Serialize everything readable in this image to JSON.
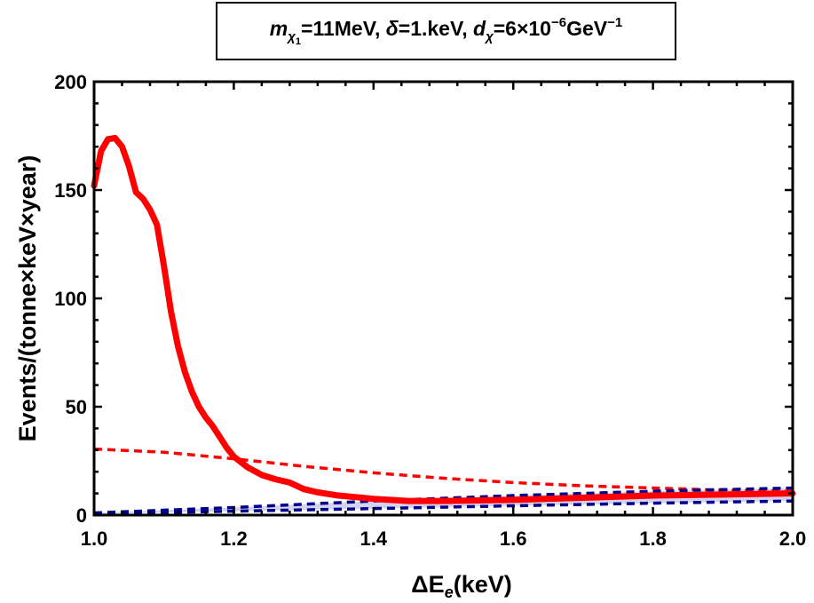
{
  "chart_data": {
    "type": "line",
    "title": {
      "m_symbol": "m",
      "chi": "χ",
      "one": "1",
      "m_value": "=11MeV,",
      "delta_symbol": "δ",
      "delta_value": "=1.keV,",
      "d_symbol": "d",
      "d_value": "=6×10",
      "d_exponent": "−6",
      "d_unit": "GeV",
      "d_unit_exponent": "−1"
    },
    "xlabel": "ΔE",
    "xlabel_sub": "e",
    "xlabel_unit": "(keV)",
    "ylabel": "Events/(tonne×keV×year)",
    "xlim": [
      1.0,
      2.0
    ],
    "ylim": [
      0,
      200
    ],
    "xticks": [
      1.0,
      1.2,
      1.4,
      1.6,
      1.8,
      2.0
    ],
    "xtick_labels": [
      "1.0",
      "1.2",
      "1.4",
      "1.6",
      "1.8",
      "2.0"
    ],
    "yticks": [
      0,
      50,
      100,
      150,
      200
    ],
    "ytick_labels": [
      "0",
      "50",
      "100",
      "150",
      "200"
    ],
    "series": [
      {
        "name": "signal",
        "style": "solid-thick",
        "color": "#ff0000",
        "x": [
          1.0,
          1.01,
          1.02,
          1.03,
          1.04,
          1.05,
          1.06,
          1.07,
          1.08,
          1.09,
          1.1,
          1.11,
          1.12,
          1.13,
          1.14,
          1.15,
          1.16,
          1.17,
          1.18,
          1.19,
          1.2,
          1.22,
          1.24,
          1.26,
          1.28,
          1.3,
          1.32,
          1.35,
          1.4,
          1.45,
          1.5,
          1.6,
          1.7,
          1.8,
          1.9,
          2.0
        ],
        "y": [
          152,
          168,
          173.5,
          174,
          170,
          161,
          149,
          146,
          141,
          134,
          115,
          94,
          78,
          66,
          57,
          50,
          45,
          41,
          36,
          31,
          27,
          22,
          18.5,
          16.5,
          15,
          12,
          10.5,
          9,
          7.5,
          6.5,
          6.5,
          7,
          8,
          9,
          9.5,
          10
        ]
      },
      {
        "name": "background-red-dashed",
        "style": "dashed",
        "color": "#ff0000",
        "x": [
          1.0,
          1.1,
          1.2,
          1.3,
          1.4,
          1.5,
          1.6,
          1.7,
          1.8,
          1.9,
          2.0
        ],
        "y": [
          30.5,
          29,
          26,
          22.5,
          19.5,
          17,
          15,
          13.5,
          12.5,
          11.5,
          11
        ]
      },
      {
        "name": "background-blue-upper",
        "style": "dashed",
        "color": "#00008b",
        "x": [
          1.0,
          1.2,
          1.4,
          1.6,
          1.8,
          2.0
        ],
        "y": [
          1,
          3.5,
          6.5,
          9,
          11,
          12.5
        ]
      },
      {
        "name": "background-blue-lower",
        "style": "dashed",
        "color": "#00008b",
        "x": [
          1.0,
          1.2,
          1.4,
          1.6,
          1.8,
          2.0
        ],
        "y": [
          0.5,
          1.8,
          3,
          4.3,
          5.5,
          6.5
        ]
      }
    ],
    "band": {
      "name": "blue-uncertainty-band",
      "color": "#c8c8ee"
    }
  }
}
